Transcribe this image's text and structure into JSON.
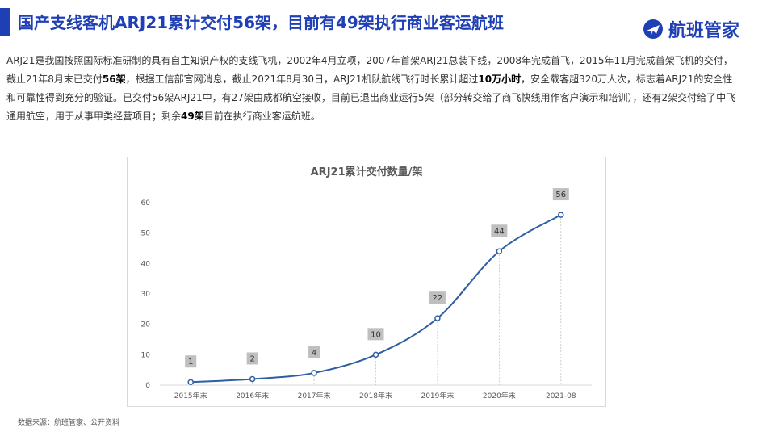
{
  "header": {
    "title": "国产支线客机ARJ21累计交付56架，目前有49架执行商业客运航班",
    "logo_text": "航班管家",
    "accent_color": "#1f3fb5"
  },
  "description": {
    "p1": "ARJ21是我国按照国际标准研制的具有自主知识产权的支线飞机，2002年4月立项，2007年首架ARJ21总装下线，2008年完成首飞，2015年11月完成首架飞机的交付，截止21年8月末已交付",
    "b1": "56架",
    "p2": "，根据工信部官网消息，截止2021年8月30日，ARJ21机队航线飞行时长累计超过",
    "b2": "10万小时",
    "p3": "，安全载客超320万人次，标志着ARJ21的安全性和可靠性得到充分的验证。已交付56架ARJ21中，有27架由成都航空接收，目前已退出商业运行5架（部分转交给了商飞快线用作客户演示和培训），还有2架交付给了中飞通用航空，用于从事甲类经营项目；剩余",
    "b3": "49架",
    "p4": "目前在执行商业客运航班。"
  },
  "chart_data": {
    "type": "line",
    "title": "ARJ21累计交付数量/架",
    "categories": [
      "2015年末",
      "2016年末",
      "2017年末",
      "2018年末",
      "2019年末",
      "2020年末",
      "2021-08"
    ],
    "values": [
      1,
      2,
      4,
      10,
      22,
      44,
      56
    ],
    "data_labels": [
      "1",
      "2",
      "4",
      "10",
      "22",
      "44",
      "56"
    ],
    "yticks": [
      "0",
      "10",
      "20",
      "30",
      "40",
      "50",
      "60"
    ],
    "ylim": [
      0,
      60
    ],
    "line_color": "#2e5fa3",
    "label_bg": "#bfbfbf"
  },
  "footer": {
    "source": "数据来源：航班管家、公开资料"
  }
}
